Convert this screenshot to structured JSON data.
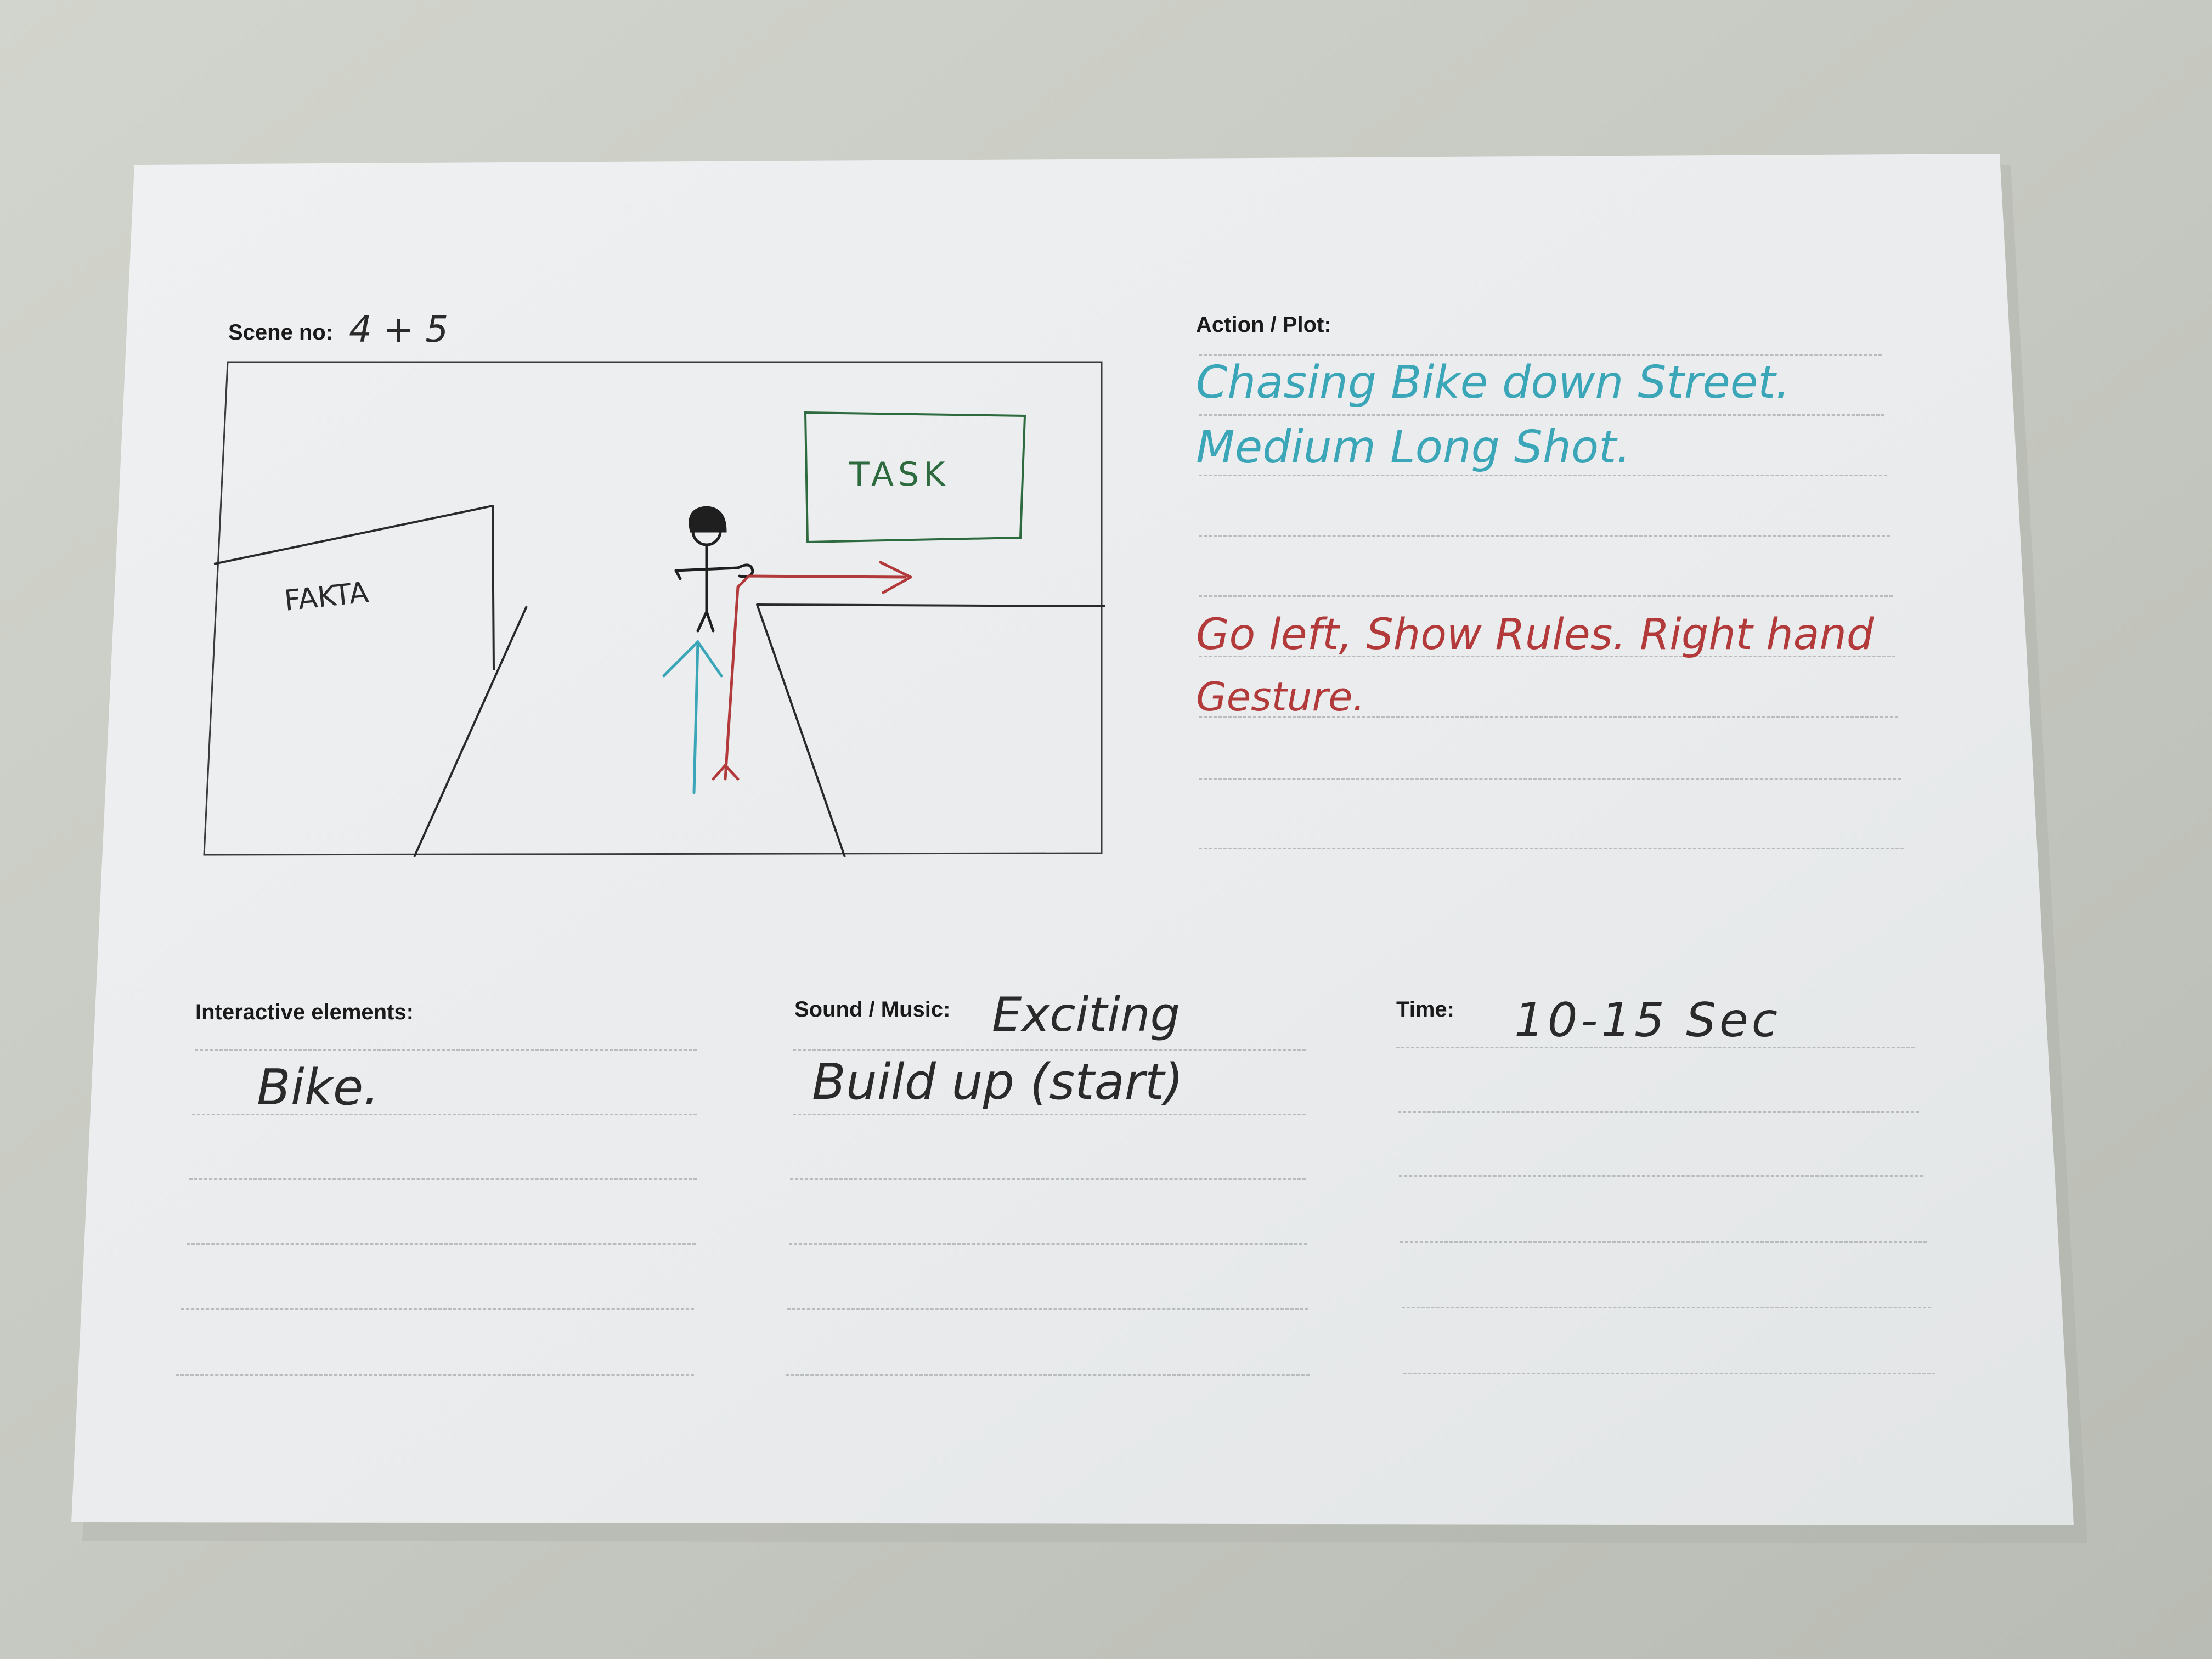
{
  "scene": {
    "label": "Scene no:",
    "value": "4 + 5"
  },
  "sketch": {
    "fakta_label": "FAKTA",
    "task_label": "TASK"
  },
  "action": {
    "label": "Action / Plot:",
    "lines_teal": [
      "Chasing Bike down Street.",
      "Medium Long Shot."
    ],
    "lines_red": [
      "Go left, Show Rules. Right hand",
      "Gesture."
    ]
  },
  "interactive": {
    "label": "Interactive elements:",
    "value": "Bike."
  },
  "sound": {
    "label": "Sound / Music:",
    "line1": "Exciting",
    "line2": "Build up (start)"
  },
  "time": {
    "label": "Time:",
    "value": "10-15 Sec"
  },
  "colors": {
    "paper": "#eceef0",
    "desk": "#c9ccc4",
    "ink_black": "#2a2a2a",
    "ink_teal": "#3aa6b8",
    "ink_red": "#b23a3a",
    "ink_green": "#2d6b3e"
  }
}
